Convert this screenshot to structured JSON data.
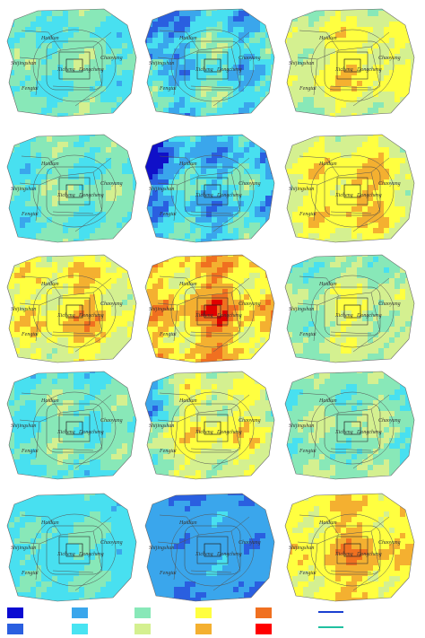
{
  "district_labels": {
    "haidian": "Haidian",
    "chaoyang": "Chaoyang",
    "shijingshan": "Shijingshan",
    "fengtai": "Fengtai",
    "xicheng": "Xicheng",
    "dongcheng": "Dongcheng"
  }
}
